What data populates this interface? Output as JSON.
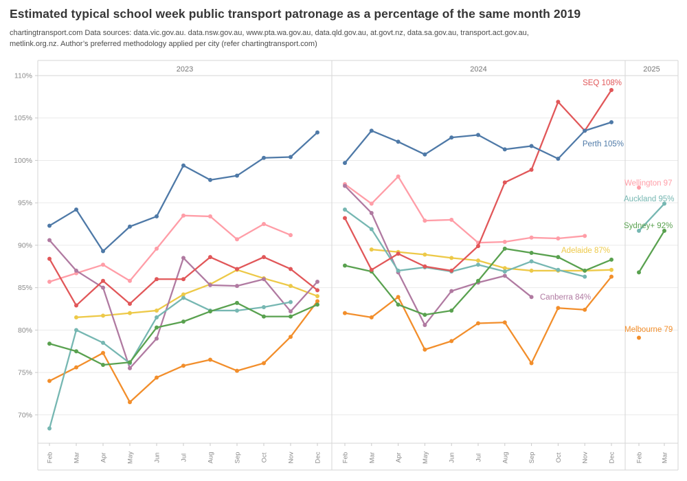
{
  "title": "Estimated typical school week public transport patronage as a percentage of the same month 2019",
  "subtitle_line1": "chartingtransport.com  Data sources: data.vic.gov.au. data.nsw.gov.au, www.pta.wa.gov.au, data.qld.gov.au, at.govt.nz, data.sa.gov.au, transport.act.gov.au,",
  "subtitle_line2": "metlink.org.nz. Author’s preferred methodology applied per city (refer chartingtransport.com)",
  "chart_data": {
    "type": "line",
    "unit": "percent of same month 2019",
    "grid": true,
    "y_axis": {
      "tick_labels": [
        "110%",
        "105%",
        "100%",
        "95%",
        "90%",
        "85%",
        "80%",
        "75%",
        "70%"
      ],
      "tick_values": [
        110,
        105,
        100,
        95,
        90,
        85,
        80,
        75,
        70
      ],
      "min": 66.5,
      "max": 111.5
    },
    "panels": [
      {
        "label": "2023",
        "months": [
          "Feb",
          "Mar",
          "Apr",
          "May",
          "Jun",
          "Jul",
          "Aug",
          "Sep",
          "Oct",
          "Nov",
          "Dec"
        ]
      },
      {
        "label": "2024",
        "months": [
          "Feb",
          "Mar",
          "Apr",
          "May",
          "Jun",
          "Jul",
          "Aug",
          "Sep",
          "Oct",
          "Nov",
          "Dec"
        ]
      },
      {
        "label": "2025",
        "months": [
          "Feb",
          "Mar"
        ]
      }
    ],
    "series": [
      {
        "name": "Adelaide",
        "color": "#edc948",
        "end_label": "Adelaide 87%",
        "values_2023": [
          null,
          81.5,
          81.7,
          82.0,
          82.3,
          84.2,
          85.4,
          87.1,
          86.1,
          85.2,
          84.0
        ],
        "values_2024": [
          null,
          89.5,
          89.2,
          88.9,
          88.5,
          88.2,
          87.3,
          87.0,
          87.0,
          87.0,
          87.1
        ],
        "values_2025": [
          null,
          null
        ]
      },
      {
        "name": "Wellington",
        "color": "#ff9da7",
        "end_label": "Wellington 97",
        "values_2023": [
          85.7,
          86.7,
          87.7,
          85.8,
          89.6,
          93.5,
          93.4,
          90.7,
          92.5,
          91.2,
          null
        ],
        "values_2024": [
          97.2,
          94.9,
          98.1,
          92.9,
          93.0,
          90.3,
          90.4,
          90.9,
          90.8,
          91.1,
          null
        ],
        "values_2025": [
          96.8,
          null
        ]
      },
      {
        "name": "Canberra",
        "color": "#b07aa1",
        "end_label": "Canberra 84%",
        "values_2023": [
          90.6,
          87.0,
          85.0,
          75.5,
          79.0,
          88.5,
          85.3,
          85.2,
          86.0,
          82.2,
          85.7
        ],
        "values_2024": [
          97.0,
          93.8,
          86.8,
          80.6,
          84.6,
          85.6,
          86.4,
          83.9,
          null,
          null,
          null
        ],
        "values_2025": [
          null,
          null
        ]
      },
      {
        "name": "Melbourne",
        "color": "#f28e2b",
        "end_label": "Melbourne 79",
        "values_2023": [
          74.0,
          75.6,
          77.3,
          71.5,
          74.4,
          75.8,
          76.5,
          75.2,
          76.1,
          79.2,
          83.4
        ],
        "values_2024": [
          82.0,
          81.5,
          83.9,
          77.7,
          78.7,
          80.8,
          80.9,
          76.1,
          82.6,
          82.4,
          86.3
        ],
        "values_2025": [
          79.1,
          null
        ]
      },
      {
        "name": "Auckland",
        "color": "#76b7b2",
        "end_label": "Auckland 95%",
        "values_2023": [
          68.4,
          80.0,
          78.5,
          76.1,
          81.5,
          83.8,
          82.3,
          82.3,
          82.7,
          83.3,
          null
        ],
        "values_2024": [
          94.2,
          91.9,
          87.0,
          87.4,
          86.9,
          87.7,
          86.9,
          88.1,
          87.1,
          86.3,
          null
        ],
        "values_2025": [
          91.7,
          94.9
        ]
      },
      {
        "name": "Sydney+",
        "color": "#59a14f",
        "end_label": "Sydney+ 92%",
        "values_2023": [
          78.4,
          77.5,
          75.9,
          76.2,
          80.3,
          81.0,
          82.2,
          83.2,
          81.6,
          81.6,
          83.0
        ],
        "values_2024": [
          87.6,
          86.9,
          83.0,
          81.8,
          82.3,
          85.8,
          89.6,
          89.1,
          88.6,
          87.0,
          88.3
        ],
        "values_2025": [
          86.8,
          91.7
        ]
      },
      {
        "name": "SEQ",
        "color": "#e15759",
        "end_label": "SEQ 108%",
        "values_2023": [
          88.4,
          82.9,
          85.8,
          83.1,
          86.0,
          86.0,
          88.6,
          87.2,
          88.6,
          87.2,
          84.7
        ],
        "values_2024": [
          93.2,
          87.1,
          89.0,
          87.5,
          87.0,
          89.9,
          97.4,
          98.9,
          106.9,
          103.5,
          108.3
        ],
        "values_2025": [
          null,
          null
        ]
      },
      {
        "name": "Perth",
        "color": "#4e79a7",
        "end_label": "Perth 105%",
        "values_2023": [
          92.3,
          94.2,
          89.3,
          92.2,
          93.4,
          99.4,
          97.7,
          98.2,
          100.3,
          100.4,
          103.3
        ],
        "values_2024": [
          99.7,
          103.5,
          102.2,
          100.7,
          102.7,
          103.0,
          101.3,
          101.7,
          100.2,
          103.5,
          104.5
        ],
        "values_2025": [
          null,
          null
        ]
      }
    ]
  }
}
